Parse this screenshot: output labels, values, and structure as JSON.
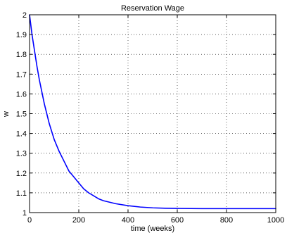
{
  "chart_data": {
    "type": "line",
    "title": "Reservation Wage",
    "xlabel": "time (weeks)",
    "ylabel": "w",
    "xlim": [
      0,
      1000
    ],
    "ylim": [
      1,
      2
    ],
    "xticks": [
      0,
      200,
      400,
      600,
      800,
      1000
    ],
    "xtick_labels": [
      "0",
      "200",
      "400",
      "600",
      "800",
      "1000"
    ],
    "yticks": [
      1,
      1.1,
      1.2,
      1.3,
      1.4,
      1.5,
      1.6,
      1.7,
      1.8,
      1.9,
      2
    ],
    "ytick_labels": [
      "1",
      "1.1",
      "1.2",
      "1.3",
      "1.4",
      "1.5",
      "1.6",
      "1.7",
      "1.8",
      "1.9",
      "2"
    ],
    "grid": true,
    "legend": "none",
    "series": [
      {
        "color": "#0000ff",
        "x": [
          0,
          10,
          20,
          30,
          40,
          50,
          60,
          70,
          80,
          90,
          100,
          120,
          140,
          160,
          180,
          200,
          220,
          240,
          260,
          280,
          300,
          350,
          400,
          450,
          500,
          550,
          600,
          700,
          800,
          900,
          1000
        ],
        "y": [
          2.0,
          1.9,
          1.82,
          1.74,
          1.67,
          1.61,
          1.55,
          1.5,
          1.45,
          1.41,
          1.37,
          1.31,
          1.26,
          1.21,
          1.18,
          1.15,
          1.12,
          1.1,
          1.085,
          1.07,
          1.06,
          1.045,
          1.035,
          1.028,
          1.024,
          1.022,
          1.021,
          1.02,
          1.02,
          1.02,
          1.02
        ]
      }
    ]
  }
}
